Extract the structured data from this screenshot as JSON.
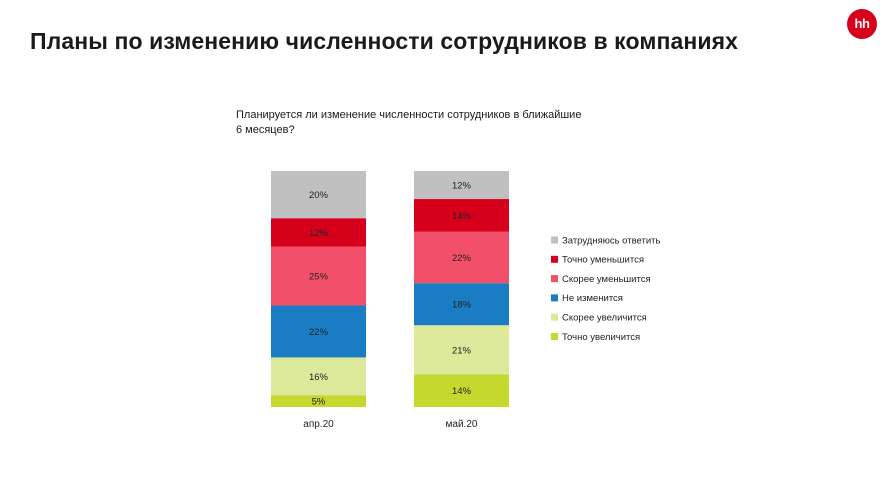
{
  "page": {
    "title": "Планы по изменению численности сотрудников в компаниях",
    "logo_text": "hh",
    "logo_color": "#d6001c"
  },
  "chart_data": {
    "type": "bar",
    "stacked": true,
    "percent": true,
    "title": "Планируется ли изменение численности сотрудников в ближайшие 6 месяцев?",
    "title_lines": [
      "Планируется ли изменение численности сотрудников в ближайшие",
      "6 месяцев?"
    ],
    "categories": [
      "апр.20",
      "май.20"
    ],
    "series": [
      {
        "name": "Точно увеличится",
        "color": "#c4d82e",
        "values": [
          5,
          14
        ]
      },
      {
        "name": "Скорее увеличится",
        "color": "#dce89a",
        "values": [
          16,
          21
        ]
      },
      {
        "name": "Не изменится",
        "color": "#1a7dc4",
        "values": [
          22,
          18
        ]
      },
      {
        "name": "Скорее уменьшится",
        "color": "#f2506a",
        "values": [
          25,
          22
        ]
      },
      {
        "name": "Точно уменьшится",
        "color": "#d6001c",
        "values": [
          12,
          14
        ]
      },
      {
        "name": "Затрудняюсь ответить",
        "color": "#c0c0c0",
        "values": [
          20,
          12
        ]
      }
    ],
    "legend_order": [
      "Затрудняюсь ответить",
      "Точно уменьшится",
      "Скорее уменьшится",
      "Не изменится",
      "Скорее увеличится",
      "Точно увеличится"
    ],
    "legend_position": "right",
    "grid": false,
    "ylim": [
      0,
      100
    ]
  }
}
